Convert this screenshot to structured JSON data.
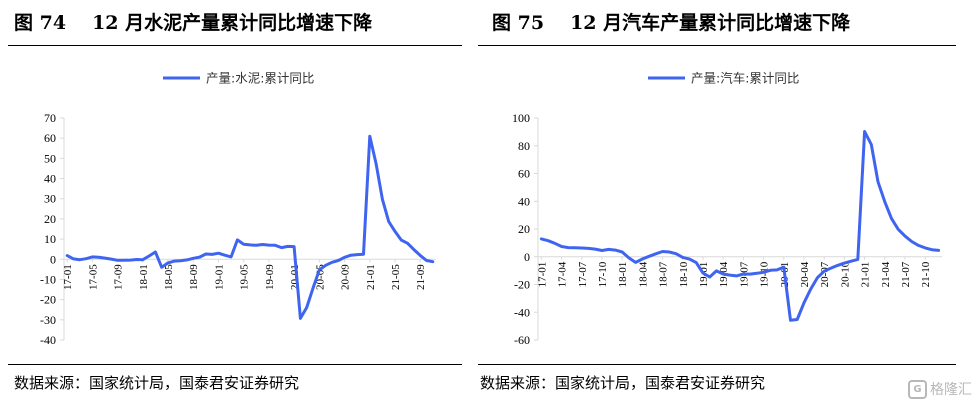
{
  "panels": [
    {
      "title_fig": "图 74",
      "title_text": "12 月水泥产量累计同比增速下降",
      "source": "数据来源：国家统计局，国泰君安证券研究"
    },
    {
      "title_fig": "图 75",
      "title_text": "12 月汽车产量累计同比增速下降",
      "source": "数据来源：国家统计局，国泰君安证券研究"
    }
  ],
  "watermark": {
    "icon_text": "G",
    "text": "格隆汇"
  },
  "colors": {
    "line": "#3F64F0",
    "axis": "#D9D9D9"
  },
  "chart_data": [
    {
      "type": "line",
      "title": "",
      "series": [
        {
          "name": "产量:水泥:累计同比",
          "values": [
            1.8,
            0.2,
            -0.2,
            0.3,
            1.2,
            1.0,
            0.6,
            0.1,
            -0.5,
            -0.5,
            -0.4,
            -0.1,
            -0.2,
            1.6,
            3.6,
            -4.0,
            -1.8,
            -0.9,
            -0.7,
            -0.3,
            0.5,
            1.1,
            2.6,
            2.4,
            3.0,
            2.0,
            1.2,
            9.6,
            7.4,
            7.1,
            6.9,
            7.3,
            7.0,
            6.9,
            5.8,
            6.4,
            6.3,
            -29.3,
            -23.9,
            -14.2,
            -5.2,
            -3.0,
            -1.5,
            -0.6,
            1.0,
            2.0,
            2.3,
            2.5,
            61.0,
            47.3,
            29.7,
            18.7,
            13.8,
            9.5,
            7.9,
            4.8,
            1.9,
            -0.6,
            -1.2
          ]
        }
      ],
      "x": [
        "17-01",
        "17-02",
        "17-03",
        "17-04",
        "17-05",
        "17-06",
        "17-07",
        "17-08",
        "17-09",
        "17-10",
        "17-11",
        "17-12",
        "18-01",
        "18-02",
        "18-03",
        "18-04",
        "18-05",
        "18-06",
        "18-07",
        "18-08",
        "18-09",
        "18-10",
        "18-11",
        "18-12",
        "19-01",
        "19-02",
        "19-03",
        "19-04",
        "19-05",
        "19-06",
        "19-07",
        "19-08",
        "19-09",
        "19-10",
        "19-11",
        "19-12",
        "20-01",
        "20-02",
        "20-03",
        "20-04",
        "20-05",
        "20-06",
        "20-07",
        "20-08",
        "20-09",
        "20-10",
        "20-11",
        "20-12",
        "21-01",
        "21-02",
        "21-03",
        "21-04",
        "21-05",
        "21-06",
        "21-07",
        "21-08",
        "21-09",
        "21-10",
        "21-11"
      ],
      "xtick_labels": [
        "17-01",
        "17-05",
        "17-09",
        "18-01",
        "18-05",
        "18-09",
        "19-01",
        "19-05",
        "19-09",
        "20-01",
        "20-05",
        "20-09",
        "21-01",
        "21-05",
        "21-09"
      ],
      "ylim": [
        -40,
        70
      ],
      "yticks": [
        70,
        60,
        50,
        40,
        30,
        20,
        10,
        0,
        -10,
        -20,
        -30,
        -40
      ],
      "grid": false,
      "legend": "top-center"
    },
    {
      "type": "line",
      "title": "",
      "series": [
        {
          "name": "产量:汽车:累计同比",
          "values": [
            12.9,
            11.6,
            9.7,
            7.4,
            6.6,
            6.5,
            6.3,
            6.0,
            5.5,
            4.5,
            5.3,
            4.8,
            3.4,
            -0.8,
            -4.1,
            -1.6,
            0.3,
            2.1,
            3.8,
            3.4,
            2.2,
            -0.5,
            -1.7,
            -4.2,
            -11.8,
            -14.6,
            -10.2,
            -12.4,
            -13.2,
            -13.8,
            -12.4,
            -12.5,
            -11.9,
            -11.2,
            -9.8,
            -9.5,
            -7.5,
            -45.8,
            -45.2,
            -33.2,
            -23.3,
            -15.1,
            -10.4,
            -8.2,
            -6.2,
            -4.6,
            -3.2,
            -1.9,
            90.3,
            80.9,
            54.0,
            39.6,
            27.5,
            19.8,
            14.9,
            11.0,
            8.2,
            6.4,
            5.1,
            4.6
          ]
        }
      ],
      "x": [
        "17-01",
        "17-02",
        "17-03",
        "17-04",
        "17-05",
        "17-06",
        "17-07",
        "17-08",
        "17-09",
        "17-10",
        "17-11",
        "17-12",
        "18-01",
        "18-02",
        "18-03",
        "18-04",
        "18-05",
        "18-06",
        "18-07",
        "18-08",
        "18-09",
        "18-10",
        "18-11",
        "18-12",
        "19-01",
        "19-02",
        "19-03",
        "19-04",
        "19-05",
        "19-06",
        "19-07",
        "19-08",
        "19-09",
        "19-10",
        "19-11",
        "19-12",
        "20-01",
        "20-02",
        "20-03",
        "20-04",
        "20-05",
        "20-06",
        "20-07",
        "20-08",
        "20-09",
        "20-10",
        "20-11",
        "20-12",
        "21-01",
        "21-02",
        "21-03",
        "21-04",
        "21-05",
        "21-06",
        "21-07",
        "21-08",
        "21-09",
        "21-10",
        "21-11",
        "21-12"
      ],
      "xtick_labels": [
        "17-01",
        "17-04",
        "17-07",
        "17-10",
        "18-01",
        "18-04",
        "18-07",
        "18-10",
        "19-01",
        "19-04",
        "19-07",
        "19-10",
        "20-01",
        "20-04",
        "20-07",
        "20-10",
        "21-01",
        "21-04",
        "21-07",
        "21-10"
      ],
      "ylim": [
        -60,
        100
      ],
      "yticks": [
        100,
        80,
        60,
        40,
        20,
        0,
        -20,
        -40,
        -60
      ],
      "grid": false,
      "legend": "top-center"
    }
  ]
}
